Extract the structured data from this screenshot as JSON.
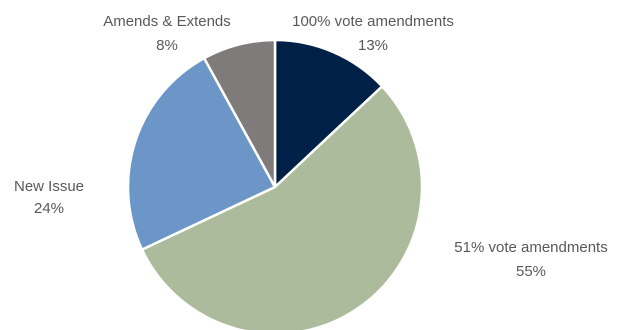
{
  "chart_data": {
    "type": "pie",
    "title": "",
    "slices": [
      {
        "name": "100% vote amendments",
        "value": 13,
        "value_label": "13%",
        "color": "#002147"
      },
      {
        "name": "51% vote amendments",
        "value": 55,
        "value_label": "55%",
        "color": "#abbb9b"
      },
      {
        "name": "New Issue",
        "value": 24,
        "value_label": "24%",
        "color": "#6d96c8"
      },
      {
        "name": "Amends & Extends",
        "value": 8,
        "value_label": "8%",
        "color": "#7f7b7b"
      }
    ],
    "start_angle_deg": 0,
    "direction": "clockwise",
    "legend": "none"
  }
}
